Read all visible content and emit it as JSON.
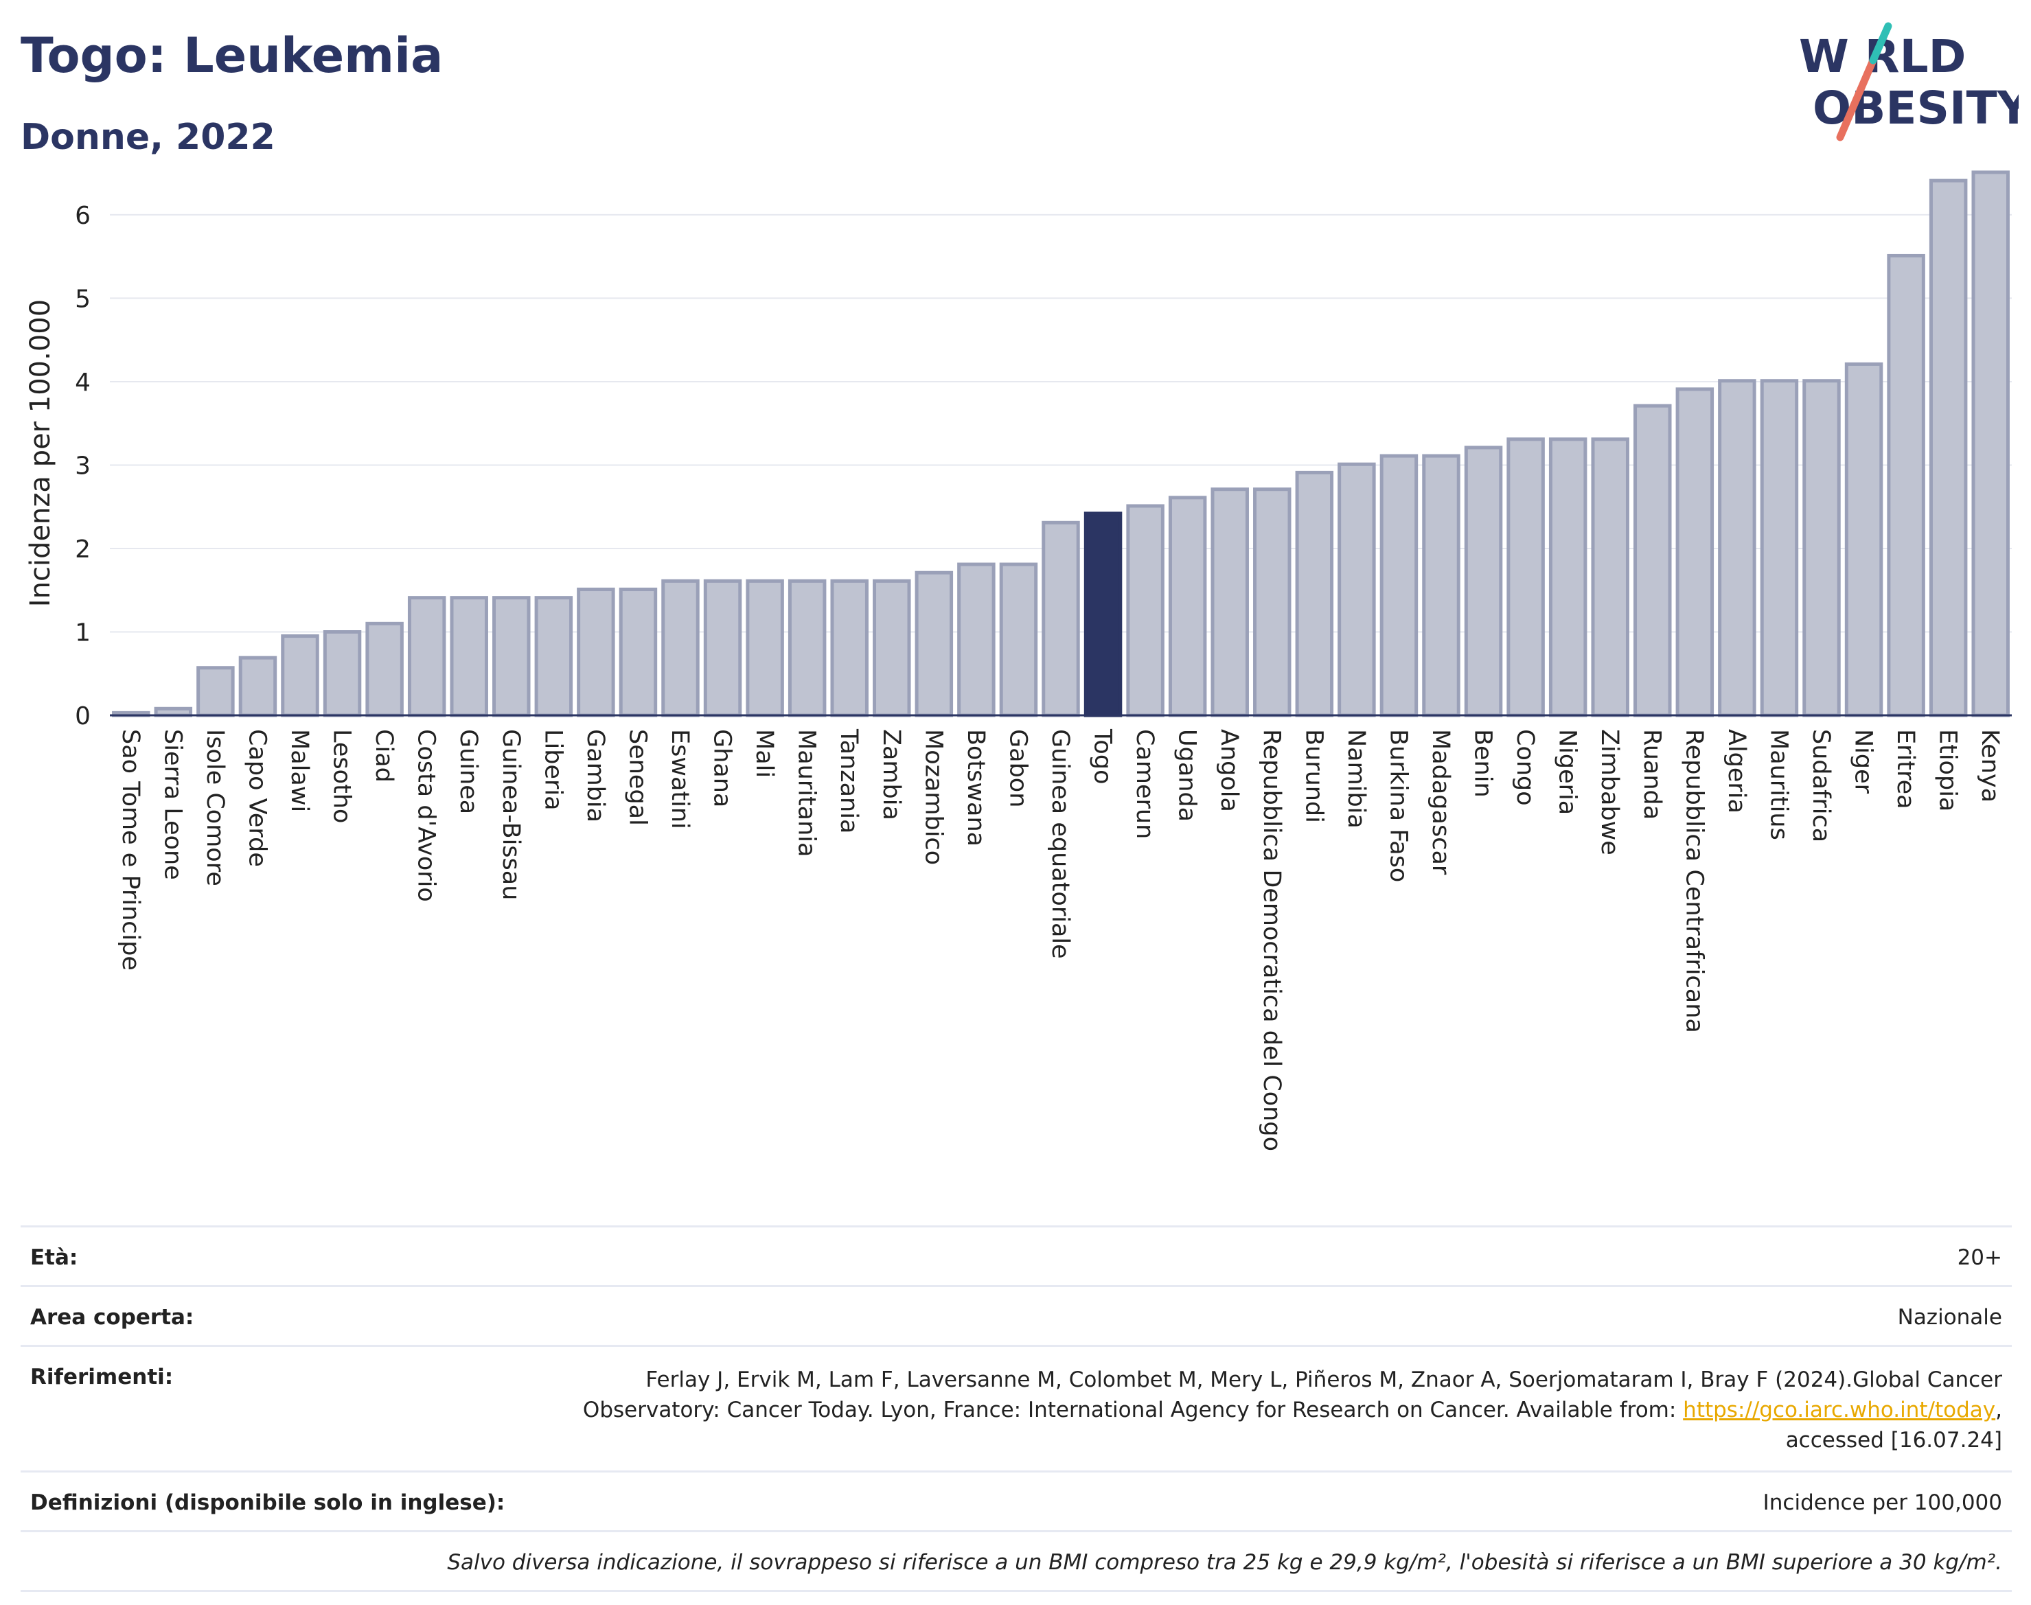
{
  "title": "Togo: Leukemia",
  "subtitle": "Donne, 2022",
  "logo": {
    "line1": "W  RLD",
    "line2": "OBESITY"
  },
  "chart_data": {
    "type": "bar",
    "ylabel": "Incidenza per 100.000",
    "xlabel": "",
    "ylim": [
      0,
      6.6
    ],
    "yticks": [
      0,
      1,
      2,
      3,
      4,
      5,
      6
    ],
    "grid": true,
    "highlight": "Togo",
    "colors": {
      "bar": "#bfc3d1",
      "bar_edge": "#9aa0b8",
      "highlight": "#2b3563"
    },
    "categories": [
      "Sao Tome e Principe",
      "Sierra Leone",
      "Isole Comore",
      "Capo Verde",
      "Malawi",
      "Lesotho",
      "Ciad",
      "Costa d'Avorio",
      "Guinea",
      "Guinea-Bissau",
      "Liberia",
      "Gambia",
      "Senegal",
      "Eswatini",
      "Ghana",
      "Mali",
      "Mauritania",
      "Tanzania",
      "Zambia",
      "Mozambico",
      "Botswana",
      "Gabon",
      "Guinea equatoriale",
      "Togo",
      "Camerun",
      "Uganda",
      "Angola",
      "Repubblica Democratica del Congo",
      "Burundi",
      "Namibia",
      "Burkina Faso",
      "Madagascar",
      "Benin",
      "Congo",
      "Nigeria",
      "Zimbabwe",
      "Ruanda",
      "Repubblica Centrafricana",
      "Algeria",
      "Mauritius",
      "Sudafrica",
      "Niger",
      "Eritrea",
      "Etiopia",
      "Kenya"
    ],
    "values": [
      0.03,
      0.08,
      0.57,
      0.69,
      0.95,
      1.0,
      1.1,
      1.41,
      1.41,
      1.41,
      1.41,
      1.51,
      1.51,
      1.61,
      1.61,
      1.61,
      1.61,
      1.61,
      1.61,
      1.71,
      1.81,
      1.81,
      2.31,
      2.42,
      2.51,
      2.61,
      2.71,
      2.71,
      2.91,
      3.01,
      3.11,
      3.11,
      3.21,
      3.31,
      3.31,
      3.31,
      3.71,
      3.91,
      4.01,
      4.01,
      4.01,
      4.21,
      5.51,
      6.41,
      6.51
    ]
  },
  "info": {
    "age_label": "Età:",
    "age_value": "20+",
    "area_label": "Area coperta:",
    "area_value": "Nazionale",
    "ref_label": "Riferimenti:",
    "ref_text1": "Ferlay J, Ervik M, Lam F, Laversanne M, Colombet M, Mery L, Piñeros M, Znaor A, Soerjomataram I, Bray F (2024).Global Cancer Observatory: Cancer Today. Lyon, France: International Agency for Research on Cancer. Available from: ",
    "ref_link": "https://gco.iarc.who.int/today",
    "ref_text2": ", accessed [16.07.24]",
    "def_label": "Definizioni (disponibile solo in inglese):",
    "def_value": "Incidence per 100,000",
    "note": "Salvo diversa indicazione, il sovrappeso si riferisce a un BMI compreso tra 25 kg e 29,9 kg/m², l'obesità si riferisce a un BMI superiore a 30 kg/m²."
  }
}
